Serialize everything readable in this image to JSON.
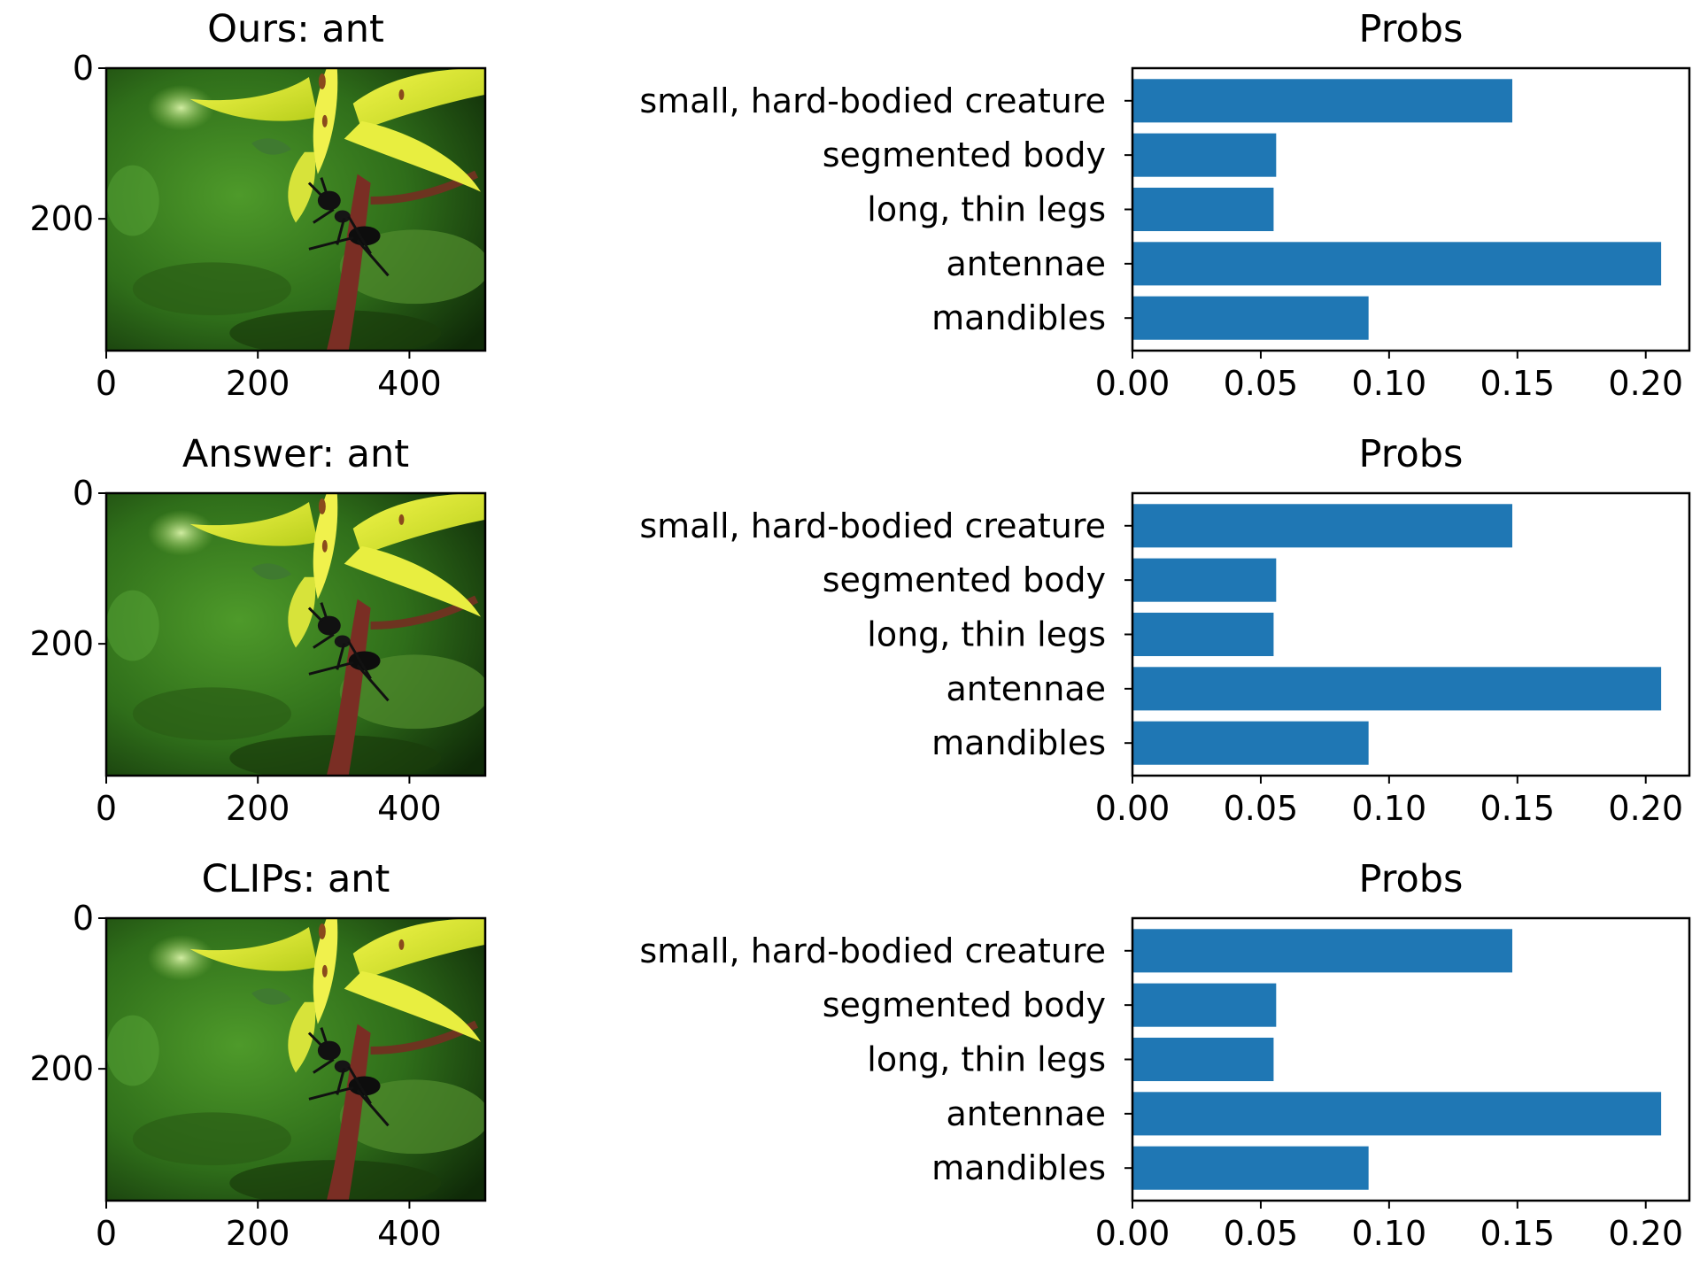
{
  "panels": [
    {
      "image_title": "Ours: ant",
      "bar_title": "Probs"
    },
    {
      "image_title": "Answer: ant",
      "bar_title": "Probs"
    },
    {
      "image_title": "CLIPs: ant",
      "bar_title": "Probs"
    }
  ],
  "image_axes": {
    "x_ticks": [
      "0",
      "200",
      "400"
    ],
    "y_ticks": [
      "0",
      "200"
    ],
    "x_range": [
      0,
      500
    ],
    "y_range": [
      0,
      375
    ]
  },
  "image_subject": "ant-on-yellow-flower-photo",
  "chart_data": [
    {
      "type": "bar",
      "orientation": "horizontal",
      "title": "Probs",
      "categories": [
        "small, hard-bodied creature",
        "segmented body",
        "long, thin legs",
        "antennae",
        "mandibles"
      ],
      "values": [
        0.148,
        0.056,
        0.055,
        0.206,
        0.092
      ],
      "xlim": [
        0,
        0.217
      ],
      "x_ticks": [
        "0.00",
        "0.05",
        "0.10",
        "0.15",
        "0.20"
      ],
      "bar_color": "#1f77b4",
      "grid": false
    },
    {
      "type": "bar",
      "orientation": "horizontal",
      "title": "Probs",
      "categories": [
        "small, hard-bodied creature",
        "segmented body",
        "long, thin legs",
        "antennae",
        "mandibles"
      ],
      "values": [
        0.148,
        0.056,
        0.055,
        0.206,
        0.092
      ],
      "xlim": [
        0,
        0.217
      ],
      "x_ticks": [
        "0.00",
        "0.05",
        "0.10",
        "0.15",
        "0.20"
      ],
      "bar_color": "#1f77b4",
      "grid": false
    },
    {
      "type": "bar",
      "orientation": "horizontal",
      "title": "Probs",
      "categories": [
        "small, hard-bodied creature",
        "segmented body",
        "long, thin legs",
        "antennae",
        "mandibles"
      ],
      "values": [
        0.148,
        0.056,
        0.055,
        0.206,
        0.092
      ],
      "xlim": [
        0,
        0.217
      ],
      "x_ticks": [
        "0.00",
        "0.05",
        "0.10",
        "0.15",
        "0.20"
      ],
      "bar_color": "#1f77b4",
      "grid": false
    }
  ]
}
